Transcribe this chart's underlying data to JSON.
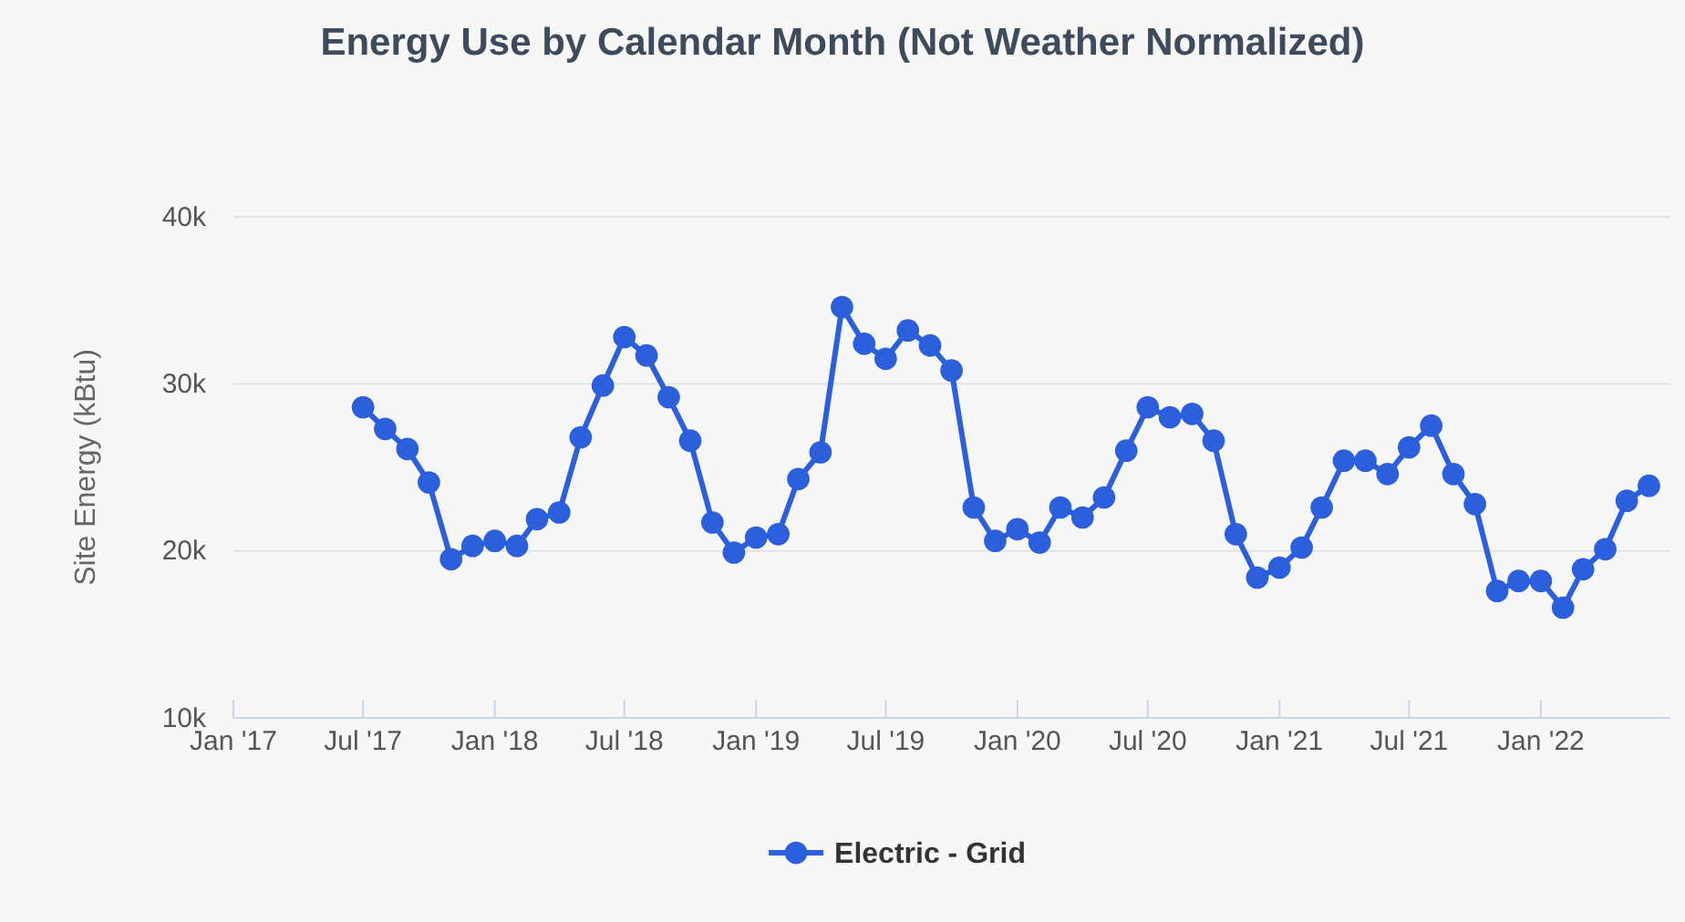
{
  "chart_data": {
    "type": "line",
    "title": "Energy Use by Calendar Month (Not Weather Normalized)",
    "ylabel": "Site Energy (kBtu)",
    "x": [
      "2017-07",
      "2017-08",
      "2017-09",
      "2017-10",
      "2017-11",
      "2017-12",
      "2018-01",
      "2018-02",
      "2018-03",
      "2018-04",
      "2018-05",
      "2018-06",
      "2018-07",
      "2018-08",
      "2018-09",
      "2018-10",
      "2018-11",
      "2018-12",
      "2019-01",
      "2019-02",
      "2019-03",
      "2019-04",
      "2019-05",
      "2019-06",
      "2019-07",
      "2019-08",
      "2019-09",
      "2019-10",
      "2019-11",
      "2019-12",
      "2020-01",
      "2020-02",
      "2020-03",
      "2020-04",
      "2020-05",
      "2020-06",
      "2020-07",
      "2020-08",
      "2020-09",
      "2020-10",
      "2020-11",
      "2020-12",
      "2021-01",
      "2021-02",
      "2021-03",
      "2021-04",
      "2021-05",
      "2021-06",
      "2021-07",
      "2021-08",
      "2021-09",
      "2021-10",
      "2021-11",
      "2021-12",
      "2022-01",
      "2022-02",
      "2022-03",
      "2022-04",
      "2022-05",
      "2022-06"
    ],
    "series": [
      {
        "name": "Electric - Grid",
        "color": "#2b5fdc",
        "values": [
          28600,
          27300,
          26100,
          24100,
          19500,
          20300,
          20600,
          20300,
          21900,
          22300,
          26800,
          29900,
          32800,
          31700,
          29200,
          26600,
          21700,
          19900,
          20800,
          21000,
          24300,
          25900,
          34600,
          32400,
          31500,
          33200,
          32300,
          30800,
          22600,
          20600,
          21300,
          20500,
          22600,
          22000,
          23200,
          26000,
          28600,
          28000,
          28200,
          26600,
          21000,
          18400,
          19000,
          20200,
          22600,
          25400,
          25400,
          24600,
          26200,
          27500,
          24600,
          22800,
          17600,
          18200,
          18200,
          16600,
          18900,
          20100,
          23000,
          23900
        ]
      }
    ],
    "xlim": [
      "2017-01",
      "2022-07"
    ],
    "xticks": [
      {
        "value": "2017-01",
        "label": "Jan '17"
      },
      {
        "value": "2017-07",
        "label": "Jul '17"
      },
      {
        "value": "2018-01",
        "label": "Jan '18"
      },
      {
        "value": "2018-07",
        "label": "Jul '18"
      },
      {
        "value": "2019-01",
        "label": "Jan '19"
      },
      {
        "value": "2019-07",
        "label": "Jul '19"
      },
      {
        "value": "2020-01",
        "label": "Jan '20"
      },
      {
        "value": "2020-07",
        "label": "Jul '20"
      },
      {
        "value": "2021-01",
        "label": "Jan '21"
      },
      {
        "value": "2021-07",
        "label": "Jul '21"
      },
      {
        "value": "2022-01",
        "label": "Jan '22"
      }
    ],
    "ylim": [
      10000,
      40000
    ],
    "yticks": [
      {
        "value": 10000,
        "label": "10k"
      },
      {
        "value": 20000,
        "label": "20k"
      },
      {
        "value": 30000,
        "label": "30k"
      },
      {
        "value": 40000,
        "label": "40k"
      }
    ],
    "grid": "y",
    "legend": "bottom",
    "marker": "circle",
    "line_style": "solid"
  }
}
